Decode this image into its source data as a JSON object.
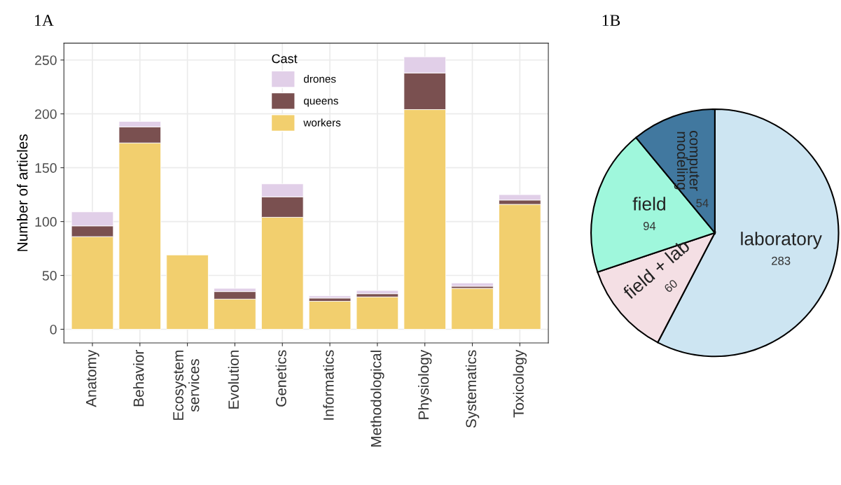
{
  "chart_data": [
    {
      "type": "bar",
      "title": "1A",
      "ylabel": "Number of articles",
      "legend_title": "Cast",
      "stacked": true,
      "legend": "top",
      "grid": true,
      "categories": [
        "Anatomy",
        "Behavior",
        "Ecosystem\nservices",
        "Evolution",
        "Genetics",
        "Informatics",
        "Methodological",
        "Physiology",
        "Systematics",
        "Toxicology"
      ],
      "series": [
        {
          "name": "workers",
          "color": "#f2cf6e",
          "values": [
            86,
            173,
            69,
            28,
            104,
            26,
            30,
            204,
            38,
            116
          ]
        },
        {
          "name": "queens",
          "color": "#7a5050",
          "values": [
            10,
            15,
            null,
            7,
            19,
            3,
            3,
            34,
            2,
            4
          ]
        },
        {
          "name": "drones",
          "color": "#e1cfe8",
          "values": [
            13,
            5,
            null,
            3,
            12,
            2,
            3,
            15,
            3,
            5
          ]
        }
      ],
      "ylim": [
        -12.65,
        265.65
      ],
      "yticks": [
        0,
        50,
        100,
        150,
        200,
        250
      ]
    },
    {
      "type": "pie",
      "title": "1B",
      "data_labels": true,
      "categories": [
        "laboratory",
        "field + lab",
        "field",
        "computer modeling"
      ],
      "values": [
        283,
        60,
        94,
        54
      ],
      "colors": [
        "#cde5f2",
        "#f4dfe4",
        "#9ff7dc",
        "#41789f"
      ]
    }
  ]
}
